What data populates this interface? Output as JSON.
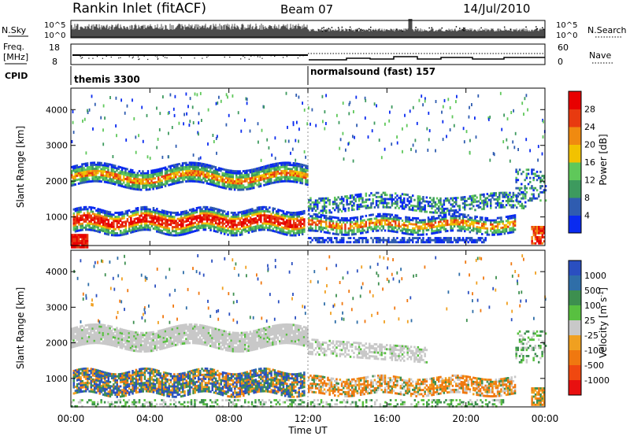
{
  "header": {
    "title": "Rankin Inlet (fitACF)",
    "beam": "Beam 07",
    "date": "14/Jul/2010"
  },
  "panels": {
    "nsky": {
      "left_label": "N.Sky",
      "left_ticks": [
        "10^5",
        "10^0"
      ],
      "right_label": "N.Search",
      "right_ticks": [
        "10^5",
        "10^0"
      ]
    },
    "freq": {
      "left_label_top": "Freq.",
      "left_label_unit": "[MHz]",
      "left_ticks": [
        "18",
        "8"
      ],
      "right_label": "Nave",
      "right_ticks": [
        "60",
        "0"
      ]
    },
    "cpid": {
      "label": "CPID",
      "segment_1": "themis 3300",
      "segment_2": "normalsound (fast) 157"
    }
  },
  "colors": {
    "power_scale": [
      "#0a2bf0",
      "#2f5cb0",
      "#3d9a5e",
      "#5fc85a",
      "#f2c200",
      "#f08a10",
      "#e83a10",
      "#e80000"
    ],
    "velocity_scale": [
      "#2a4fc0",
      "#2f6ea8",
      "#3d8f4f",
      "#58c040",
      "#c8c8c8",
      "#f0a020",
      "#f07810",
      "#f04810",
      "#e81010"
    ],
    "axes": "#000000"
  },
  "chart_data": [
    {
      "type": "heatmap",
      "name": "power",
      "ylabel": "Slant Range [km]",
      "y_ticks": [
        "1000",
        "2000",
        "3000",
        "4000"
      ],
      "ylim": [
        200,
        4600
      ],
      "x_ticks": [
        "00:00",
        "04:00",
        "08:00",
        "12:00",
        "16:00",
        "20:00",
        "00:00"
      ],
      "xlim_hours": [
        0,
        24
      ],
      "colorbar_label": "Power [dB]",
      "colorbar_ticks": [
        "4",
        "8",
        "12",
        "16",
        "20",
        "24",
        "28"
      ]
    },
    {
      "type": "heatmap",
      "name": "velocity",
      "ylabel": "Slant Range [km]",
      "y_ticks": [
        "1000",
        "2000",
        "3000",
        "4000"
      ],
      "ylim": [
        200,
        4600
      ],
      "x_ticks": [
        "00:00",
        "04:00",
        "08:00",
        "12:00",
        "16:00",
        "20:00",
        "00:00"
      ],
      "xlim_hours": [
        0,
        24
      ],
      "xlabel": "Time UT",
      "colorbar_label": "Velocity [m s^-1]",
      "colorbar_ticks": [
        "1000",
        "500",
        "100",
        "25",
        "-25",
        "-100",
        "-500",
        "-1000"
      ]
    }
  ]
}
